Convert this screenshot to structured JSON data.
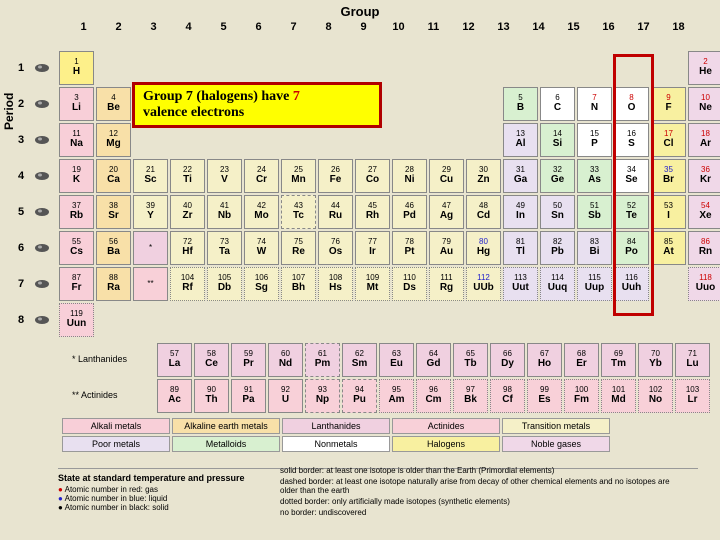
{
  "labels": {
    "group": "Group",
    "period": "Period"
  },
  "groups": [
    "1",
    "2",
    "3",
    "4",
    "5",
    "6",
    "7",
    "8",
    "9",
    "10",
    "11",
    "12",
    "13",
    "14",
    "15",
    "16",
    "17",
    "18"
  ],
  "periods": [
    "1",
    "2",
    "3",
    "4",
    "5",
    "6",
    "7",
    "8"
  ],
  "callout": {
    "line1_prefix": "Group 7 (halogens) have ",
    "line1_num": "7",
    "line2": "valence electrons"
  },
  "elements": {
    "r1": [
      {
        "n": "1",
        "s": "H",
        "c": "c-h"
      },
      null,
      null,
      null,
      null,
      null,
      null,
      null,
      null,
      null,
      null,
      null,
      null,
      null,
      null,
      null,
      null,
      {
        "n": "2",
        "s": "He",
        "c": "c-noble",
        "red": true
      }
    ],
    "r2": [
      {
        "n": "3",
        "s": "Li",
        "c": "c-alkali"
      },
      {
        "n": "4",
        "s": "Be",
        "c": "c-alkearth"
      },
      null,
      null,
      null,
      null,
      null,
      null,
      null,
      null,
      null,
      null,
      {
        "n": "5",
        "s": "B",
        "c": "c-metalloid"
      },
      {
        "n": "6",
        "s": "C",
        "c": "c-nonmetal"
      },
      {
        "n": "7",
        "s": "N",
        "c": "c-nonmetal",
        "red": true
      },
      {
        "n": "8",
        "s": "O",
        "c": "c-nonmetal",
        "red": true
      },
      {
        "n": "9",
        "s": "F",
        "c": "c-halogen",
        "red": true
      },
      {
        "n": "10",
        "s": "Ne",
        "c": "c-noble",
        "red": true
      }
    ],
    "r3": [
      {
        "n": "11",
        "s": "Na",
        "c": "c-alkali"
      },
      {
        "n": "12",
        "s": "Mg",
        "c": "c-alkearth"
      },
      null,
      null,
      null,
      null,
      null,
      null,
      null,
      null,
      null,
      null,
      {
        "n": "13",
        "s": "Al",
        "c": "c-poor"
      },
      {
        "n": "14",
        "s": "Si",
        "c": "c-metalloid"
      },
      {
        "n": "15",
        "s": "P",
        "c": "c-nonmetal"
      },
      {
        "n": "16",
        "s": "S",
        "c": "c-nonmetal"
      },
      {
        "n": "17",
        "s": "Cl",
        "c": "c-halogen",
        "red": true
      },
      {
        "n": "18",
        "s": "Ar",
        "c": "c-noble",
        "red": true
      }
    ],
    "r4": [
      {
        "n": "19",
        "s": "K",
        "c": "c-alkali"
      },
      {
        "n": "20",
        "s": "Ca",
        "c": "c-alkearth"
      },
      {
        "n": "21",
        "s": "Sc",
        "c": "c-trans"
      },
      {
        "n": "22",
        "s": "Ti",
        "c": "c-trans"
      },
      {
        "n": "23",
        "s": "V",
        "c": "c-trans"
      },
      {
        "n": "24",
        "s": "Cr",
        "c": "c-trans"
      },
      {
        "n": "25",
        "s": "Mn",
        "c": "c-trans"
      },
      {
        "n": "26",
        "s": "Fe",
        "c": "c-trans"
      },
      {
        "n": "27",
        "s": "Co",
        "c": "c-trans"
      },
      {
        "n": "28",
        "s": "Ni",
        "c": "c-trans"
      },
      {
        "n": "29",
        "s": "Cu",
        "c": "c-trans"
      },
      {
        "n": "30",
        "s": "Zn",
        "c": "c-trans"
      },
      {
        "n": "31",
        "s": "Ga",
        "c": "c-poor"
      },
      {
        "n": "32",
        "s": "Ge",
        "c": "c-metalloid"
      },
      {
        "n": "33",
        "s": "As",
        "c": "c-metalloid"
      },
      {
        "n": "34",
        "s": "Se",
        "c": "c-nonmetal"
      },
      {
        "n": "35",
        "s": "Br",
        "c": "c-halogen",
        "blue": true
      },
      {
        "n": "36",
        "s": "Kr",
        "c": "c-noble",
        "red": true
      }
    ],
    "r5": [
      {
        "n": "37",
        "s": "Rb",
        "c": "c-alkali"
      },
      {
        "n": "38",
        "s": "Sr",
        "c": "c-alkearth"
      },
      {
        "n": "39",
        "s": "Y",
        "c": "c-trans"
      },
      {
        "n": "40",
        "s": "Zr",
        "c": "c-trans"
      },
      {
        "n": "41",
        "s": "Nb",
        "c": "c-trans"
      },
      {
        "n": "42",
        "s": "Mo",
        "c": "c-trans"
      },
      {
        "n": "43",
        "s": "Tc",
        "c": "c-trans",
        "dashed": true
      },
      {
        "n": "44",
        "s": "Ru",
        "c": "c-trans"
      },
      {
        "n": "45",
        "s": "Rh",
        "c": "c-trans"
      },
      {
        "n": "46",
        "s": "Pd",
        "c": "c-trans"
      },
      {
        "n": "47",
        "s": "Ag",
        "c": "c-trans"
      },
      {
        "n": "48",
        "s": "Cd",
        "c": "c-trans"
      },
      {
        "n": "49",
        "s": "In",
        "c": "c-poor"
      },
      {
        "n": "50",
        "s": "Sn",
        "c": "c-poor"
      },
      {
        "n": "51",
        "s": "Sb",
        "c": "c-metalloid"
      },
      {
        "n": "52",
        "s": "Te",
        "c": "c-metalloid"
      },
      {
        "n": "53",
        "s": "I",
        "c": "c-halogen"
      },
      {
        "n": "54",
        "s": "Xe",
        "c": "c-noble",
        "red": true
      }
    ],
    "r6": [
      {
        "n": "55",
        "s": "Cs",
        "c": "c-alkali"
      },
      {
        "n": "56",
        "s": "Ba",
        "c": "c-alkearth"
      },
      {
        "n": "*",
        "s": "",
        "c": "c-lanth"
      },
      {
        "n": "72",
        "s": "Hf",
        "c": "c-trans"
      },
      {
        "n": "73",
        "s": "Ta",
        "c": "c-trans"
      },
      {
        "n": "74",
        "s": "W",
        "c": "c-trans"
      },
      {
        "n": "75",
        "s": "Re",
        "c": "c-trans"
      },
      {
        "n": "76",
        "s": "Os",
        "c": "c-trans"
      },
      {
        "n": "77",
        "s": "Ir",
        "c": "c-trans"
      },
      {
        "n": "78",
        "s": "Pt",
        "c": "c-trans"
      },
      {
        "n": "79",
        "s": "Au",
        "c": "c-trans"
      },
      {
        "n": "80",
        "s": "Hg",
        "c": "c-trans",
        "blue": true
      },
      {
        "n": "81",
        "s": "Tl",
        "c": "c-poor"
      },
      {
        "n": "82",
        "s": "Pb",
        "c": "c-poor"
      },
      {
        "n": "83",
        "s": "Bi",
        "c": "c-poor"
      },
      {
        "n": "84",
        "s": "Po",
        "c": "c-metalloid"
      },
      {
        "n": "85",
        "s": "At",
        "c": "c-halogen"
      },
      {
        "n": "86",
        "s": "Rn",
        "c": "c-noble",
        "red": true
      }
    ],
    "r7": [
      {
        "n": "87",
        "s": "Fr",
        "c": "c-alkali"
      },
      {
        "n": "88",
        "s": "Ra",
        "c": "c-alkearth"
      },
      {
        "n": "**",
        "s": "",
        "c": "c-act"
      },
      {
        "n": "104",
        "s": "Rf",
        "c": "c-trans",
        "dotted": true
      },
      {
        "n": "105",
        "s": "Db",
        "c": "c-trans",
        "dotted": true
      },
      {
        "n": "106",
        "s": "Sg",
        "c": "c-trans",
        "dotted": true
      },
      {
        "n": "107",
        "s": "Bh",
        "c": "c-trans",
        "dotted": true
      },
      {
        "n": "108",
        "s": "Hs",
        "c": "c-trans",
        "dotted": true
      },
      {
        "n": "109",
        "s": "Mt",
        "c": "c-trans",
        "dotted": true
      },
      {
        "n": "110",
        "s": "Ds",
        "c": "c-trans",
        "dotted": true
      },
      {
        "n": "111",
        "s": "Rg",
        "c": "c-trans",
        "dotted": true
      },
      {
        "n": "112",
        "s": "UUb",
        "c": "c-trans",
        "dotted": true,
        "blue": true
      },
      {
        "n": "113",
        "s": "Uut",
        "c": "c-poor",
        "dotted": true
      },
      {
        "n": "114",
        "s": "Uuq",
        "c": "c-poor",
        "dotted": true
      },
      {
        "n": "115",
        "s": "Uup",
        "c": "c-poor",
        "dotted": true
      },
      {
        "n": "116",
        "s": "Uuh",
        "c": "c-poor",
        "dotted": true
      },
      null,
      {
        "n": "118",
        "s": "Uuo",
        "c": "c-noble",
        "dotted": true,
        "red": true
      }
    ],
    "r8": [
      {
        "n": "119",
        "s": "Uun",
        "c": "c-alkali",
        "dotted": true
      }
    ]
  },
  "fblock": {
    "lanth_label": "* Lanthanides",
    "act_label": "** Actinides",
    "lanth": [
      {
        "n": "57",
        "s": "La"
      },
      {
        "n": "58",
        "s": "Ce"
      },
      {
        "n": "59",
        "s": "Pr"
      },
      {
        "n": "60",
        "s": "Nd"
      },
      {
        "n": "61",
        "s": "Pm",
        "dashed": true
      },
      {
        "n": "62",
        "s": "Sm"
      },
      {
        "n": "63",
        "s": "Eu"
      },
      {
        "n": "64",
        "s": "Gd"
      },
      {
        "n": "65",
        "s": "Tb"
      },
      {
        "n": "66",
        "s": "Dy"
      },
      {
        "n": "67",
        "s": "Ho"
      },
      {
        "n": "68",
        "s": "Er"
      },
      {
        "n": "69",
        "s": "Tm"
      },
      {
        "n": "70",
        "s": "Yb"
      },
      {
        "n": "71",
        "s": "Lu"
      }
    ],
    "act": [
      {
        "n": "89",
        "s": "Ac"
      },
      {
        "n": "90",
        "s": "Th"
      },
      {
        "n": "91",
        "s": "Pa"
      },
      {
        "n": "92",
        "s": "U"
      },
      {
        "n": "93",
        "s": "Np",
        "dashed": true
      },
      {
        "n": "94",
        "s": "Pu",
        "dashed": true
      },
      {
        "n": "95",
        "s": "Am",
        "dotted": true
      },
      {
        "n": "96",
        "s": "Cm",
        "dotted": true
      },
      {
        "n": "97",
        "s": "Bk",
        "dotted": true
      },
      {
        "n": "98",
        "s": "Cf",
        "dotted": true
      },
      {
        "n": "99",
        "s": "Es",
        "dotted": true
      },
      {
        "n": "100",
        "s": "Fm",
        "dotted": true
      },
      {
        "n": "101",
        "s": "Md",
        "dotted": true
      },
      {
        "n": "102",
        "s": "No",
        "dotted": true
      },
      {
        "n": "103",
        "s": "Lr",
        "dotted": true
      }
    ]
  },
  "legend": [
    {
      "label": "Alkali metals",
      "c": "c-alkali"
    },
    {
      "label": "Alkaline earth metals",
      "c": "c-alkearth"
    },
    {
      "label": "Lanthanides",
      "c": "c-lanth"
    },
    {
      "label": "Actinides",
      "c": "c-act"
    },
    {
      "label": "Transition metals",
      "c": "c-trans"
    },
    {
      "label": "Poor metals",
      "c": "c-poor"
    },
    {
      "label": "Metalloids",
      "c": "c-metalloid"
    },
    {
      "label": "Nonmetals",
      "c": "c-nonmetal"
    },
    {
      "label": "Halogens",
      "c": "c-halogen"
    },
    {
      "label": "Noble gases",
      "c": "c-noble"
    }
  ],
  "state": {
    "title": "State at standard temperature and pressure",
    "gas": "Atomic number in red: gas",
    "liquid": "Atomic number in blue: liquid",
    "solid": "Atomic number in black: solid"
  },
  "borders": {
    "solid": "solid border: at least one isotope is older than the Earth (Primordial elements)",
    "dashed": "dashed border: at least one isotope naturally arise from decay of other chemical elements and no isotopes are older than the earth",
    "dotted": "dotted border: only artificially made isotopes (synthetic elements)",
    "none": "no border: undiscovered"
  },
  "colors": {
    "bg": "#e8e4d0",
    "highlight_border": "#c00000",
    "callout_bg": "#ffff00",
    "callout_border": "#b00000"
  }
}
